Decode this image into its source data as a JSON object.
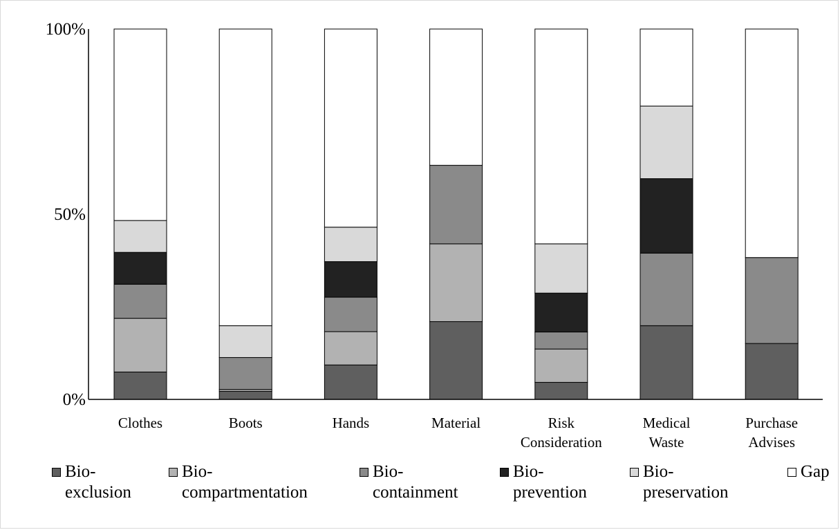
{
  "chart_data": {
    "type": "bar",
    "stacked": true,
    "percent": true,
    "categories": [
      "Clothes",
      "Boots",
      "Hands",
      "Material",
      "Risk Consideration",
      "Medical Waste",
      "Purchase Advises"
    ],
    "category_labels": [
      [
        "Clothes"
      ],
      [
        "Boots"
      ],
      [
        "Hands"
      ],
      [
        "Material"
      ],
      [
        "Risk",
        "Consideration"
      ],
      [
        "Medical",
        "Waste"
      ],
      [
        "Purchase",
        "Advises"
      ]
    ],
    "series": [
      {
        "name": "Bio-exclusion",
        "legend_lines": [
          "Bio-",
          "exclusion"
        ],
        "color": "#5f5f5f",
        "values": [
          7.4,
          2.2,
          9.3,
          21.0,
          4.6,
          19.9,
          15.1
        ]
      },
      {
        "name": "Bio-compartmentation",
        "legend_lines": [
          "Bio-",
          "compartmentation"
        ],
        "color": "#b2b2b2",
        "values": [
          14.5,
          0.5,
          9.0,
          21.0,
          9.0,
          0.0,
          0.0
        ]
      },
      {
        "name": "Bio-containment",
        "legend_lines": [
          "Bio-",
          "containment"
        ],
        "color": "#8a8a8a",
        "values": [
          9.2,
          8.6,
          9.3,
          21.2,
          4.6,
          19.6,
          23.2
        ]
      },
      {
        "name": "Bio-prevention",
        "legend_lines": [
          "Bio-",
          "prevention"
        ],
        "color": "#222222",
        "values": [
          8.6,
          0.0,
          9.6,
          0.0,
          10.5,
          20.1,
          0.0
        ]
      },
      {
        "name": "Bio-preservation",
        "legend_lines": [
          "Bio-",
          "preservation"
        ],
        "color": "#d9d9d9",
        "values": [
          8.6,
          8.6,
          9.3,
          0.0,
          13.3,
          19.6,
          0.0
        ]
      },
      {
        "name": "Gap",
        "legend_lines": [
          "Gap"
        ],
        "color": "#ffffff",
        "values": [
          51.7,
          80.1,
          53.5,
          36.8,
          58.0,
          20.8,
          61.7
        ]
      }
    ],
    "yticks": [
      "0%",
      "50%",
      "100%"
    ],
    "ylim": [
      0,
      100
    ],
    "title": "",
    "xlabel": "",
    "ylabel": "",
    "legend_position": "bottom",
    "grid": false
  }
}
